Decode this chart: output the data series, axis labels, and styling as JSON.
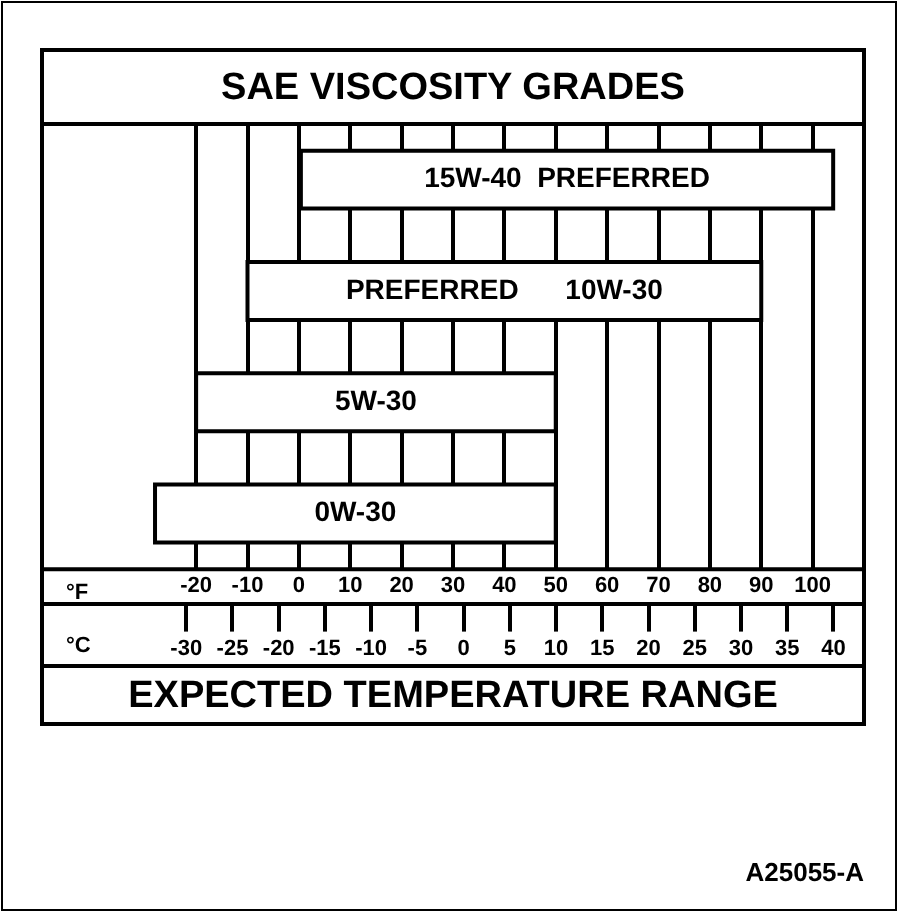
{
  "chart_data": {
    "type": "bar",
    "orientation": "horizontal",
    "title": "SAE VISCOSITY GRADES",
    "xlabel": "°F",
    "x2label": "°C",
    "categories": [
      "15W-40  PREFERRED",
      "PREFERRED      10W-30",
      "5W-30",
      "0W-30"
    ],
    "base": [
      0,
      -10,
      -20,
      -28
    ],
    "values": [
      104,
      100,
      70,
      78
    ],
    "color": "#ffffff",
    "xlim": [
      -50,
      110
    ],
    "xticks": [
      -20,
      -10,
      0,
      10,
      20,
      30,
      40,
      50,
      60,
      70,
      80,
      90,
      100
    ],
    "x2lim": [
      -45.6,
      43.3
    ],
    "x2ticks": [
      -30,
      -25,
      -20,
      -15,
      -10,
      -5,
      0,
      5,
      10,
      15,
      20,
      25,
      30,
      35,
      40
    ],
    "grid": "x",
    "annotations": [
      "EXPECTED TEMPERATURE RANGE",
      "A25055-A"
    ]
  }
}
